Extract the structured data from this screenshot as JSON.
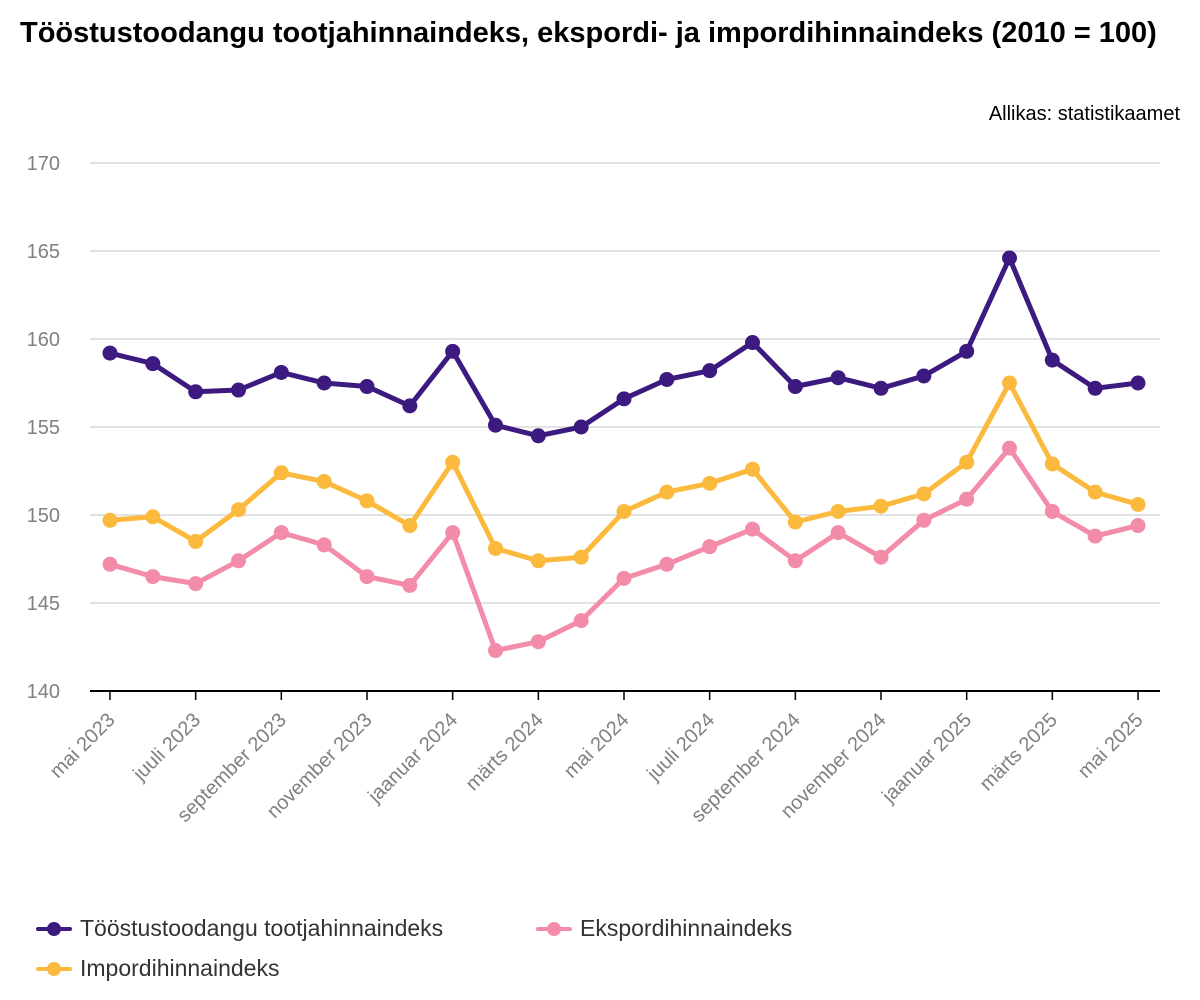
{
  "chart_data": {
    "type": "line",
    "title": "Tööstustoodangu tootjahinnaindeks, ekspordi- ja impordihinnaindeks (2010 = 100)",
    "source": "Allikas: statistikaamet",
    "ylim": [
      140,
      170
    ],
    "yticks": [
      140,
      145,
      150,
      155,
      160,
      165,
      170
    ],
    "grid": true,
    "legend_position": "bottom",
    "x": [
      "mai 2023",
      "juuni 2023",
      "juuli 2023",
      "august 2023",
      "september 2023",
      "oktoober 2023",
      "november 2023",
      "detsember 2023",
      "jaanuar 2024",
      "veebruar 2024",
      "märts 2024",
      "aprill 2024",
      "mai 2024",
      "juuni 2024",
      "juuli 2024",
      "august 2024",
      "september 2024",
      "oktoober 2024",
      "november 2024",
      "detsember 2024",
      "jaanuar 2025",
      "veebruar 2025",
      "märts 2025",
      "aprill 2025",
      "mai 2025"
    ],
    "x_tick_labels": [
      "mai 2023",
      "juuli 2023",
      "september 2023",
      "november 2023",
      "jaanuar 2024",
      "märts 2024",
      "mai 2024",
      "juuli 2024",
      "september 2024",
      "november 2024",
      "jaanuar 2025",
      "märts 2025",
      "mai 2025"
    ],
    "series": [
      {
        "name": "Tööstustoodangu tootjahinnaindeks",
        "color": "#3d1a7f",
        "values": [
          159.2,
          158.6,
          157.0,
          157.1,
          158.1,
          157.5,
          157.3,
          156.2,
          159.3,
          155.1,
          154.5,
          155.0,
          156.6,
          157.7,
          158.2,
          159.8,
          157.3,
          157.8,
          157.2,
          157.9,
          159.3,
          164.6,
          158.8,
          157.2,
          157.5
        ]
      },
      {
        "name": "Ekspordihinnaindeks",
        "color": "#f28ca8",
        "values": [
          147.2,
          146.5,
          146.1,
          147.4,
          149.0,
          148.3,
          146.5,
          146.0,
          149.0,
          142.3,
          142.8,
          144.0,
          146.4,
          147.2,
          148.2,
          149.2,
          147.4,
          149.0,
          147.6,
          149.7,
          150.9,
          153.8,
          150.2,
          148.8,
          149.4
        ]
      },
      {
        "name": "Impordihinnaindeks",
        "color": "#fbb93e",
        "values": [
          149.7,
          149.9,
          148.5,
          150.3,
          152.4,
          151.9,
          150.8,
          149.4,
          153.0,
          148.1,
          147.4,
          147.6,
          150.2,
          151.3,
          151.8,
          152.6,
          149.6,
          150.2,
          150.5,
          151.2,
          153.0,
          157.5,
          152.9,
          151.3,
          150.6
        ]
      }
    ]
  }
}
